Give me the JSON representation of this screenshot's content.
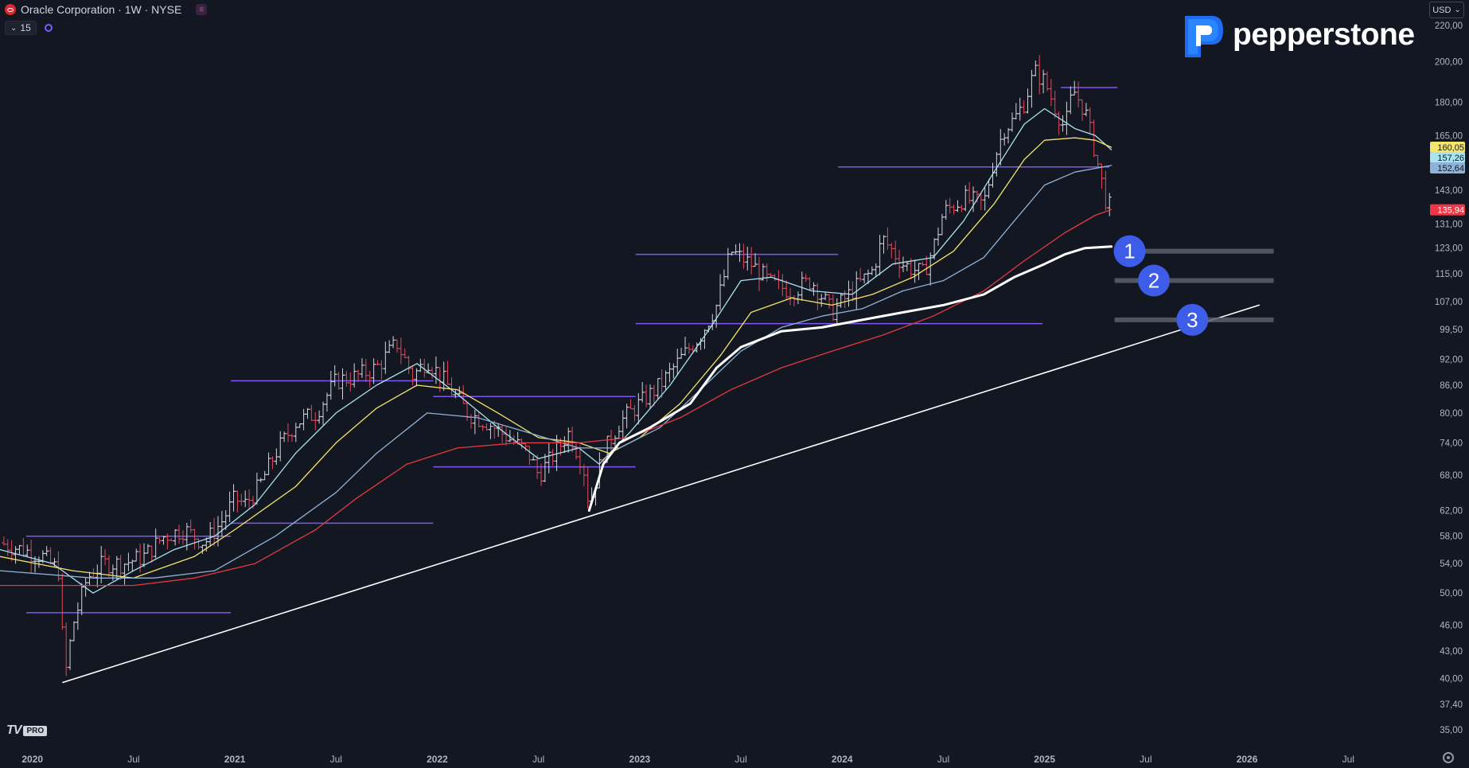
{
  "header": {
    "symbol": "Oracle Corporation · 1W · NYSE",
    "indicator_count": "15",
    "currency": "USD",
    "brand": "pepperstone"
  },
  "watermark": {
    "text": "TV",
    "badge": "PRO"
  },
  "colors": {
    "background": "#131722",
    "candle_up": "#d1d4dc",
    "candle_down": "#e0495b",
    "ma_yellow": "#f4e46c",
    "ma_cyan": "#a8e3ef",
    "ma_blue": "#8fb3d8",
    "ma_red": "#e5393f",
    "ma_white": "#ffffff",
    "level_purple": "#7e57f2",
    "target_marker": "#3d5ce8",
    "target_bar": "#5d606b"
  },
  "chart_data": {
    "type": "line",
    "xlabel": "",
    "ylabel": "",
    "x_ticks": [
      "2020",
      "Jul",
      "2021",
      "Jul",
      "2022",
      "Jul",
      "2023",
      "Jul",
      "2024",
      "Jul",
      "2025",
      "Jul",
      "2026",
      "Jul"
    ],
    "x_tick_dates": [
      2020.0,
      2020.5,
      2021.0,
      2021.5,
      2022.0,
      2022.5,
      2023.0,
      2023.5,
      2024.0,
      2024.5,
      2025.0,
      2025.5,
      2026.0,
      2026.5
    ],
    "y_ticks": [
      "220,00",
      "200,00",
      "180,00",
      "165,00",
      "143,00",
      "131,00",
      "123,00",
      "115,00",
      "107,00",
      "99,50",
      "92,00",
      "86,00",
      "80,00",
      "74,00",
      "68,00",
      "62,00",
      "58,00",
      "54,00",
      "50,00",
      "46,00",
      "43,00",
      "40,00",
      "37,40",
      "35,00"
    ],
    "y_tick_values": [
      220,
      200,
      180,
      165,
      143,
      131,
      123,
      115,
      107,
      99.5,
      92,
      86,
      80,
      74,
      68,
      62,
      58,
      54,
      50,
      46,
      43,
      40,
      37.4,
      35
    ],
    "y_scale": "log",
    "y_range": [
      33.5,
      235
    ],
    "x_range": [
      2019.84,
      2026.9
    ],
    "price_labels": [
      {
        "text": "160,05",
        "value": 160.05,
        "bg": "#f4e46c",
        "fg": "#131722"
      },
      {
        "text": "157,26",
        "value": 157.26,
        "bg": "#a8e3ef",
        "fg": "#131722"
      },
      {
        "text": "152,64",
        "value": 152.64,
        "bg": "#8fb3d8",
        "fg": "#131722"
      },
      {
        "text": "135,94",
        "value": 135.94,
        "bg": "#f23645",
        "fg": "#ffffff"
      }
    ],
    "candles_points": [
      [
        2019.84,
        57
      ],
      [
        2019.95,
        56
      ],
      [
        2020.05,
        55
      ],
      [
        2020.13,
        53
      ],
      [
        2020.16,
        40
      ],
      [
        2020.2,
        46
      ],
      [
        2020.27,
        52
      ],
      [
        2020.35,
        54
      ],
      [
        2020.45,
        54
      ],
      [
        2020.55,
        55
      ],
      [
        2020.65,
        58
      ],
      [
        2020.75,
        59
      ],
      [
        2020.85,
        57
      ],
      [
        2020.93,
        60
      ],
      [
        2021.0,
        64
      ],
      [
        2021.05,
        63
      ],
      [
        2021.12,
        66
      ],
      [
        2021.2,
        72
      ],
      [
        2021.3,
        78
      ],
      [
        2021.4,
        80
      ],
      [
        2021.5,
        87
      ],
      [
        2021.6,
        88
      ],
      [
        2021.7,
        90
      ],
      [
        2021.8,
        96
      ],
      [
        2021.88,
        88
      ],
      [
        2021.95,
        92
      ],
      [
        2022.05,
        86
      ],
      [
        2022.15,
        80
      ],
      [
        2022.25,
        78
      ],
      [
        2022.35,
        75
      ],
      [
        2022.45,
        72
      ],
      [
        2022.5,
        68
      ],
      [
        2022.58,
        72
      ],
      [
        2022.65,
        76
      ],
      [
        2022.72,
        70
      ],
      [
        2022.75,
        63
      ],
      [
        2022.82,
        72
      ],
      [
        2022.9,
        78
      ],
      [
        2023.0,
        82
      ],
      [
        2023.1,
        86
      ],
      [
        2023.2,
        92
      ],
      [
        2023.3,
        98
      ],
      [
        2023.38,
        106
      ],
      [
        2023.45,
        122
      ],
      [
        2023.55,
        118
      ],
      [
        2023.65,
        112
      ],
      [
        2023.75,
        110
      ],
      [
        2023.85,
        113
      ],
      [
        2023.95,
        104
      ],
      [
        2024.05,
        110
      ],
      [
        2024.15,
        116
      ],
      [
        2024.2,
        126
      ],
      [
        2024.3,
        118
      ],
      [
        2024.4,
        115
      ],
      [
        2024.45,
        123
      ],
      [
        2024.5,
        135
      ],
      [
        2024.6,
        140
      ],
      [
        2024.7,
        138
      ],
      [
        2024.75,
        155
      ],
      [
        2024.8,
        168
      ],
      [
        2024.85,
        172
      ],
      [
        2024.9,
        180
      ],
      [
        2024.95,
        195
      ],
      [
        2025.0,
        190
      ],
      [
        2025.05,
        178
      ],
      [
        2025.1,
        168
      ],
      [
        2025.14,
        186
      ],
      [
        2025.2,
        176
      ],
      [
        2025.25,
        158
      ],
      [
        2025.3,
        140
      ],
      [
        2025.33,
        136
      ]
    ],
    "series": [
      {
        "name": "",
        "color": "#a8e3ef",
        "width": 1.3,
        "points": [
          [
            2019.84,
            56
          ],
          [
            2020.1,
            54
          ],
          [
            2020.3,
            50
          ],
          [
            2020.5,
            53
          ],
          [
            2020.7,
            56
          ],
          [
            2020.9,
            58
          ],
          [
            2021.1,
            63
          ],
          [
            2021.3,
            72
          ],
          [
            2021.5,
            80
          ],
          [
            2021.7,
            86
          ],
          [
            2021.9,
            91
          ],
          [
            2022.1,
            84
          ],
          [
            2022.3,
            77
          ],
          [
            2022.5,
            71
          ],
          [
            2022.7,
            73
          ],
          [
            2022.8,
            70
          ],
          [
            2022.95,
            76
          ],
          [
            2023.15,
            86
          ],
          [
            2023.35,
            100
          ],
          [
            2023.5,
            113
          ],
          [
            2023.65,
            114
          ],
          [
            2023.85,
            110
          ],
          [
            2024.05,
            109
          ],
          [
            2024.25,
            118
          ],
          [
            2024.45,
            120
          ],
          [
            2024.6,
            132
          ],
          [
            2024.75,
            150
          ],
          [
            2024.9,
            170
          ],
          [
            2025.0,
            177
          ],
          [
            2025.15,
            168
          ],
          [
            2025.25,
            165
          ],
          [
            2025.33,
            159
          ]
        ]
      },
      {
        "name": "",
        "color": "#f4e46c",
        "width": 1.3,
        "points": [
          [
            2019.84,
            55
          ],
          [
            2020.2,
            53
          ],
          [
            2020.5,
            52
          ],
          [
            2020.8,
            55
          ],
          [
            2021.0,
            59
          ],
          [
            2021.3,
            66
          ],
          [
            2021.5,
            74
          ],
          [
            2021.7,
            81
          ],
          [
            2021.9,
            86
          ],
          [
            2022.1,
            85
          ],
          [
            2022.3,
            80
          ],
          [
            2022.5,
            75
          ],
          [
            2022.7,
            74
          ],
          [
            2022.85,
            72
          ],
          [
            2023.0,
            75
          ],
          [
            2023.2,
            82
          ],
          [
            2023.4,
            93
          ],
          [
            2023.55,
            104
          ],
          [
            2023.75,
            108
          ],
          [
            2023.95,
            106
          ],
          [
            2024.15,
            109
          ],
          [
            2024.35,
            114
          ],
          [
            2024.55,
            122
          ],
          [
            2024.75,
            138
          ],
          [
            2024.9,
            155
          ],
          [
            2025.0,
            163
          ],
          [
            2025.15,
            164
          ],
          [
            2025.25,
            163
          ],
          [
            2025.33,
            160
          ]
        ]
      },
      {
        "name": "",
        "color": "#8fb3d8",
        "width": 1.3,
        "points": [
          [
            2019.84,
            53
          ],
          [
            2020.3,
            52
          ],
          [
            2020.6,
            52
          ],
          [
            2020.9,
            53
          ],
          [
            2021.2,
            58
          ],
          [
            2021.5,
            65
          ],
          [
            2021.7,
            72
          ],
          [
            2021.95,
            80
          ],
          [
            2022.2,
            79
          ],
          [
            2022.45,
            76
          ],
          [
            2022.7,
            73
          ],
          [
            2022.9,
            73
          ],
          [
            2023.1,
            77
          ],
          [
            2023.3,
            85
          ],
          [
            2023.5,
            94
          ],
          [
            2023.7,
            100
          ],
          [
            2023.9,
            103
          ],
          [
            2024.1,
            105
          ],
          [
            2024.3,
            110
          ],
          [
            2024.5,
            113
          ],
          [
            2024.7,
            120
          ],
          [
            2024.85,
            132
          ],
          [
            2025.0,
            145
          ],
          [
            2025.15,
            150
          ],
          [
            2025.33,
            152.6
          ]
        ]
      },
      {
        "name": "",
        "color": "#e5393f",
        "width": 1.3,
        "points": [
          [
            2019.84,
            51
          ],
          [
            2020.2,
            51
          ],
          [
            2020.5,
            51
          ],
          [
            2020.8,
            52
          ],
          [
            2021.1,
            54
          ],
          [
            2021.4,
            59
          ],
          [
            2021.6,
            64
          ],
          [
            2021.85,
            70
          ],
          [
            2022.1,
            73
          ],
          [
            2022.4,
            74
          ],
          [
            2022.7,
            74
          ],
          [
            2022.95,
            75
          ],
          [
            2023.2,
            79
          ],
          [
            2023.45,
            85
          ],
          [
            2023.7,
            90
          ],
          [
            2023.95,
            94
          ],
          [
            2024.2,
            98
          ],
          [
            2024.45,
            103
          ],
          [
            2024.7,
            110
          ],
          [
            2024.9,
            119
          ],
          [
            2025.1,
            128
          ],
          [
            2025.25,
            134
          ],
          [
            2025.33,
            136
          ]
        ]
      },
      {
        "name": "",
        "color": "#ffffff",
        "width": 3,
        "points": [
          [
            2022.75,
            62
          ],
          [
            2022.82,
            70
          ],
          [
            2022.9,
            74
          ],
          [
            2023.05,
            77
          ],
          [
            2023.25,
            82
          ],
          [
            2023.38,
            90
          ],
          [
            2023.5,
            95
          ],
          [
            2023.7,
            99
          ],
          [
            2023.9,
            100
          ],
          [
            2024.1,
            102
          ],
          [
            2024.3,
            104
          ],
          [
            2024.5,
            106
          ],
          [
            2024.7,
            109
          ],
          [
            2024.85,
            114
          ],
          [
            2025.0,
            118
          ],
          [
            2025.1,
            121
          ],
          [
            2025.2,
            123
          ],
          [
            2025.33,
            123.5
          ]
        ]
      },
      {
        "name": "",
        "color": "#ffffff",
        "width": 1.6,
        "points": [
          [
            2020.15,
            39.6
          ],
          [
            2026.06,
            106
          ]
        ]
      }
    ],
    "horizontal_levels": [
      {
        "y": 58,
        "x_from": 2019.97,
        "x_to": 2020.98
      },
      {
        "y": 47.5,
        "x_from": 2019.97,
        "x_to": 2020.98
      },
      {
        "y": 87,
        "x_from": 2020.98,
        "x_to": 2021.98
      },
      {
        "y": 60,
        "x_from": 2020.98,
        "x_to": 2021.98
      },
      {
        "y": 83.5,
        "x_from": 2021.98,
        "x_to": 2022.98
      },
      {
        "y": 69.5,
        "x_from": 2021.98,
        "x_to": 2022.98
      },
      {
        "y": 121,
        "x_from": 2022.98,
        "x_to": 2023.98
      },
      {
        "y": 101,
        "x_from": 2022.98,
        "x_to": 2024.99
      },
      {
        "y": 152,
        "x_from": 2023.98,
        "x_to": 2025.32
      },
      {
        "y": 187,
        "x_from": 2025.08,
        "x_to": 2025.36
      }
    ],
    "targets": [
      {
        "label": "1",
        "value": 122,
        "x_marker": 2025.42
      },
      {
        "label": "2",
        "value": 113,
        "x_marker": 2025.54
      },
      {
        "label": "3",
        "value": 102,
        "x_marker": 2025.73
      }
    ]
  }
}
